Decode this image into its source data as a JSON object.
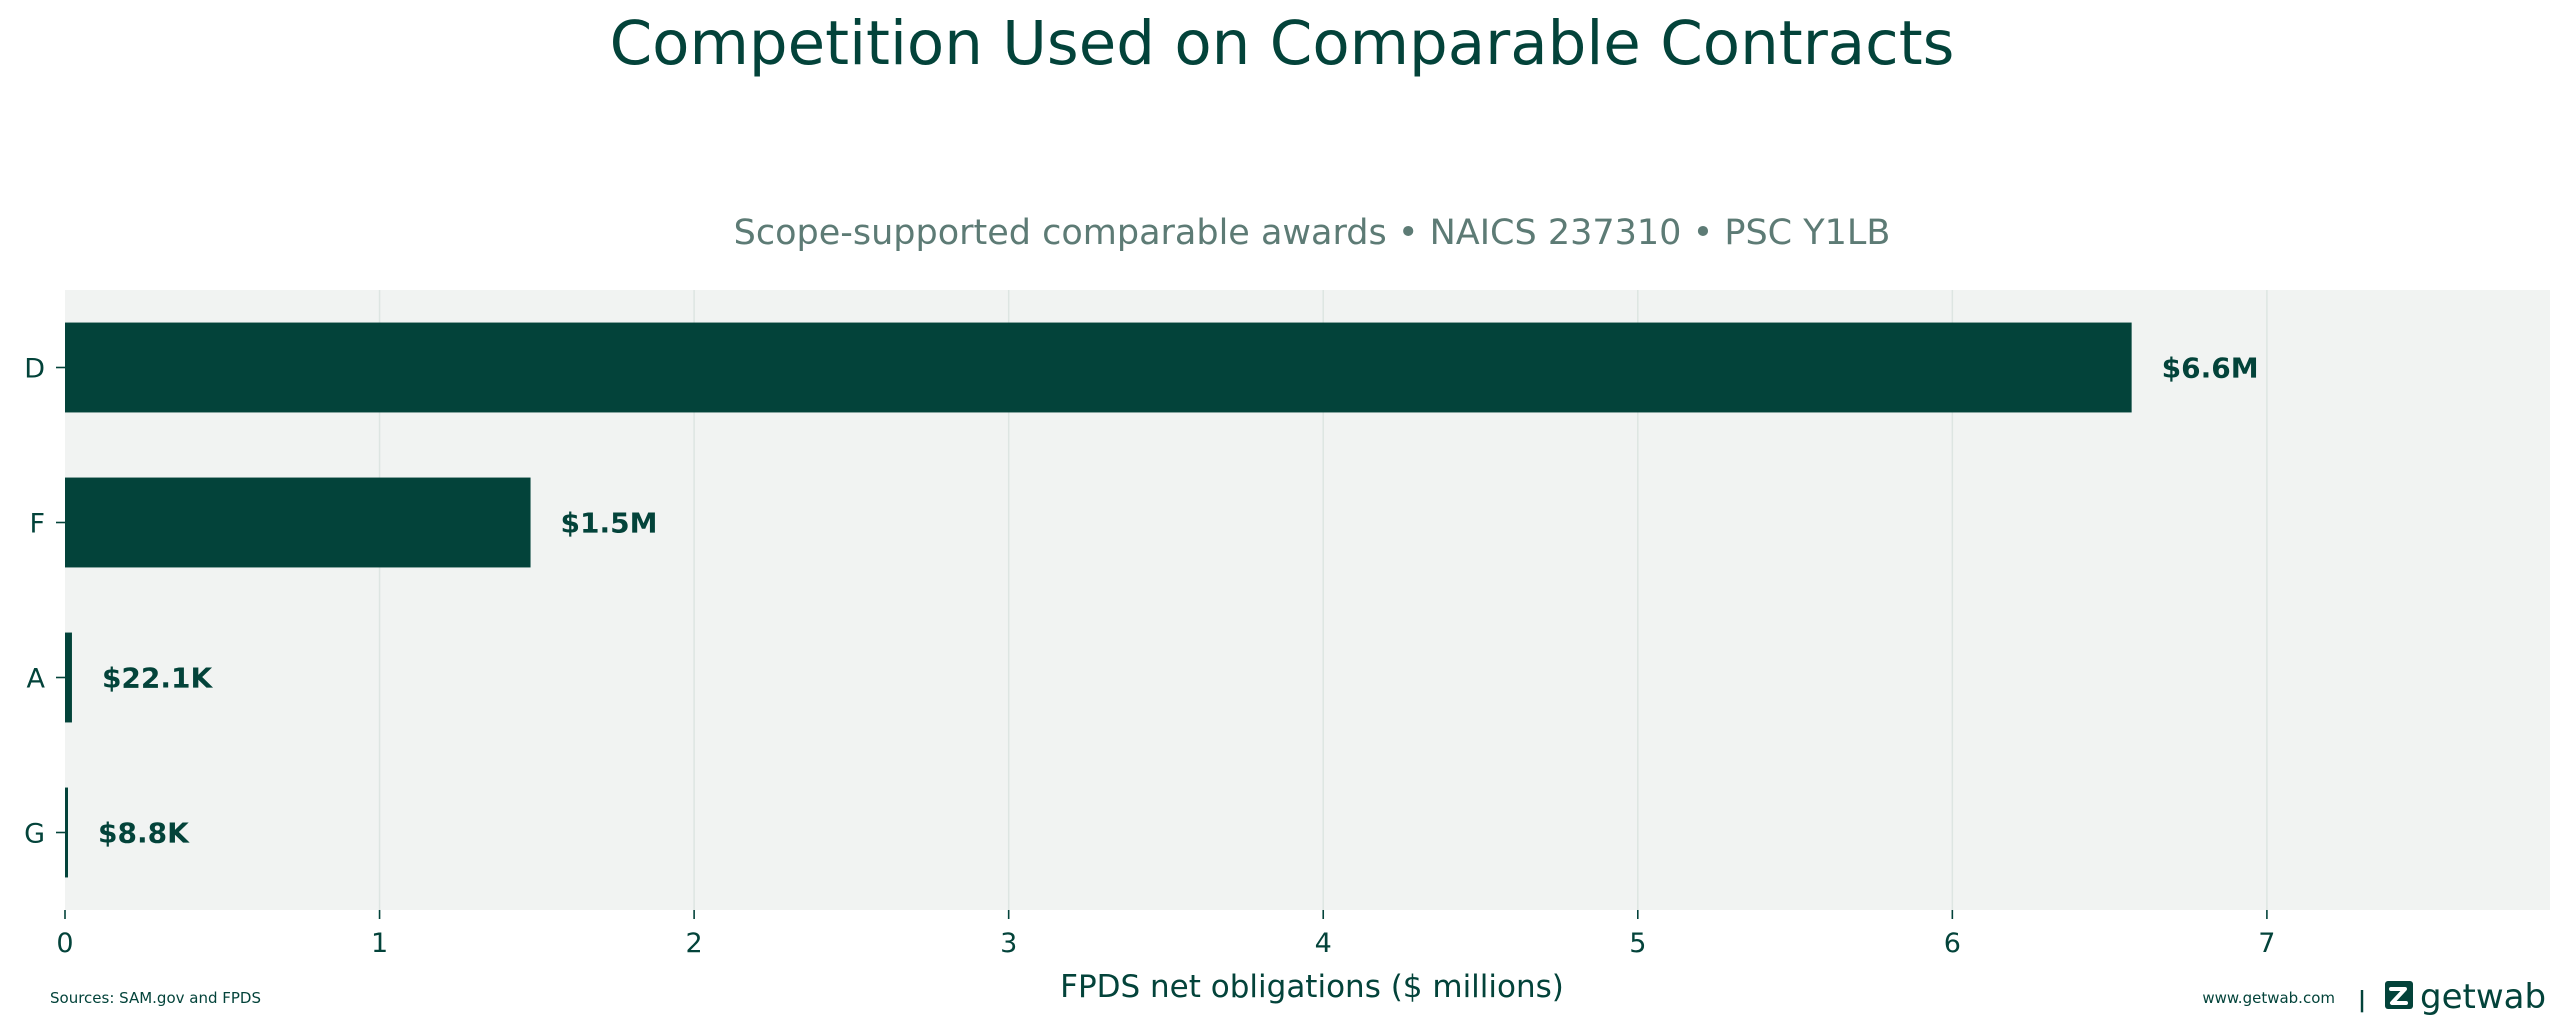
{
  "title": "Competition Used on Comparable Contracts",
  "subtitle": "Scope-supported comparable awards • NAICS 237310 • PSC Y1LB",
  "footer": {
    "sources": "Sources: SAM.gov and FPDS",
    "website": "www.getwab.com",
    "separator": "|",
    "brand": "getwab"
  },
  "colors": {
    "bar": "#03433a",
    "plot_background": "#f1f3f2",
    "grid": "#dde5e2",
    "text": "#03433a",
    "subtitle": "#5d7b75"
  },
  "chart_data": {
    "type": "bar",
    "orientation": "horizontal",
    "categories": [
      "D",
      "F",
      "A",
      "G"
    ],
    "values": [
      6.57,
      1.48,
      0.0221,
      0.0088
    ],
    "value_labels": [
      "$6.6M",
      "$1.5M",
      "$22.1K",
      "$8.8K"
    ],
    "xlabel": "FPDS net obligations ($ millions)",
    "ylabel": "",
    "xlim": [
      0,
      7.9
    ],
    "xticks": [
      "0",
      "1",
      "2",
      "3",
      "4",
      "5",
      "6",
      "7"
    ],
    "grid": "vertical",
    "legend": "none"
  }
}
